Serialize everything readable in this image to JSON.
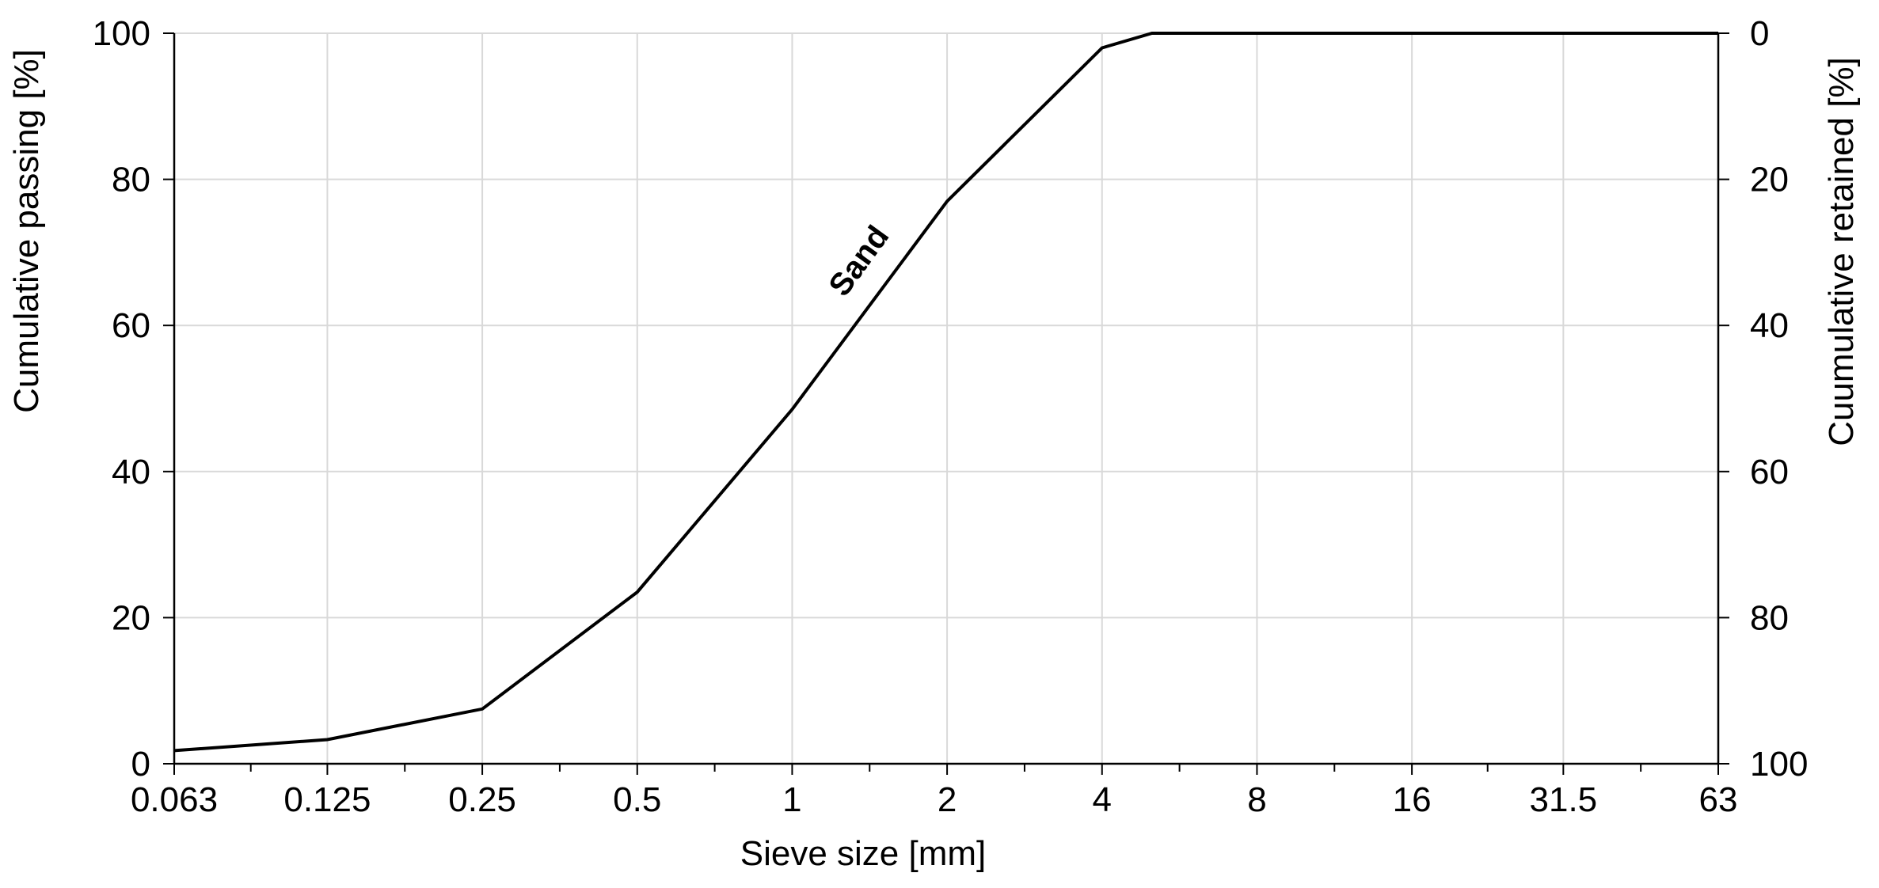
{
  "chart_data": {
    "type": "line",
    "xlabel": "Sieve size [mm]",
    "ylabel": "Cumulative passing [%]",
    "y2label": "Cuumulative retained [%]",
    "x_scale": "log2",
    "x_ticks": [
      {
        "value": 0.063,
        "label": "0.063"
      },
      {
        "value": 0.125,
        "label": "0.125"
      },
      {
        "value": 0.25,
        "label": "0.25"
      },
      {
        "value": 0.5,
        "label": "0.5"
      },
      {
        "value": 1,
        "label": "1"
      },
      {
        "value": 2,
        "label": "2"
      },
      {
        "value": 4,
        "label": "4"
      },
      {
        "value": 8,
        "label": "8"
      },
      {
        "value": 16,
        "label": "16"
      },
      {
        "value": 31.5,
        "label": "31.5"
      },
      {
        "value": 63,
        "label": "63"
      }
    ],
    "ylim": [
      0,
      100
    ],
    "y_ticks": [
      0,
      20,
      40,
      60,
      80,
      100
    ],
    "y2_ticks": [
      {
        "value": 0,
        "label": "100"
      },
      {
        "value": 20,
        "label": "80"
      },
      {
        "value": 40,
        "label": "60"
      },
      {
        "value": 60,
        "label": "40"
      },
      {
        "value": 80,
        "label": "20"
      },
      {
        "value": 100,
        "label": "0"
      }
    ],
    "grid": true,
    "series": [
      {
        "name": "Sand",
        "color": "#000000",
        "points": [
          {
            "x": 0.063,
            "y": 1.8
          },
          {
            "x": 0.125,
            "y": 3.3
          },
          {
            "x": 0.25,
            "y": 7.5
          },
          {
            "x": 0.5,
            "y": 23.5
          },
          {
            "x": 1,
            "y": 48.5
          },
          {
            "x": 2,
            "y": 77
          },
          {
            "x": 4,
            "y": 98
          },
          {
            "x": 5,
            "y": 100
          },
          {
            "x": 63,
            "y": 100
          }
        ]
      }
    ],
    "annotations": [
      {
        "text": "Sand",
        "x": 1.4,
        "y": 68
      }
    ],
    "colors": {
      "line": "#000000",
      "grid": "#d9d9d9",
      "axis": "#000000"
    }
  }
}
